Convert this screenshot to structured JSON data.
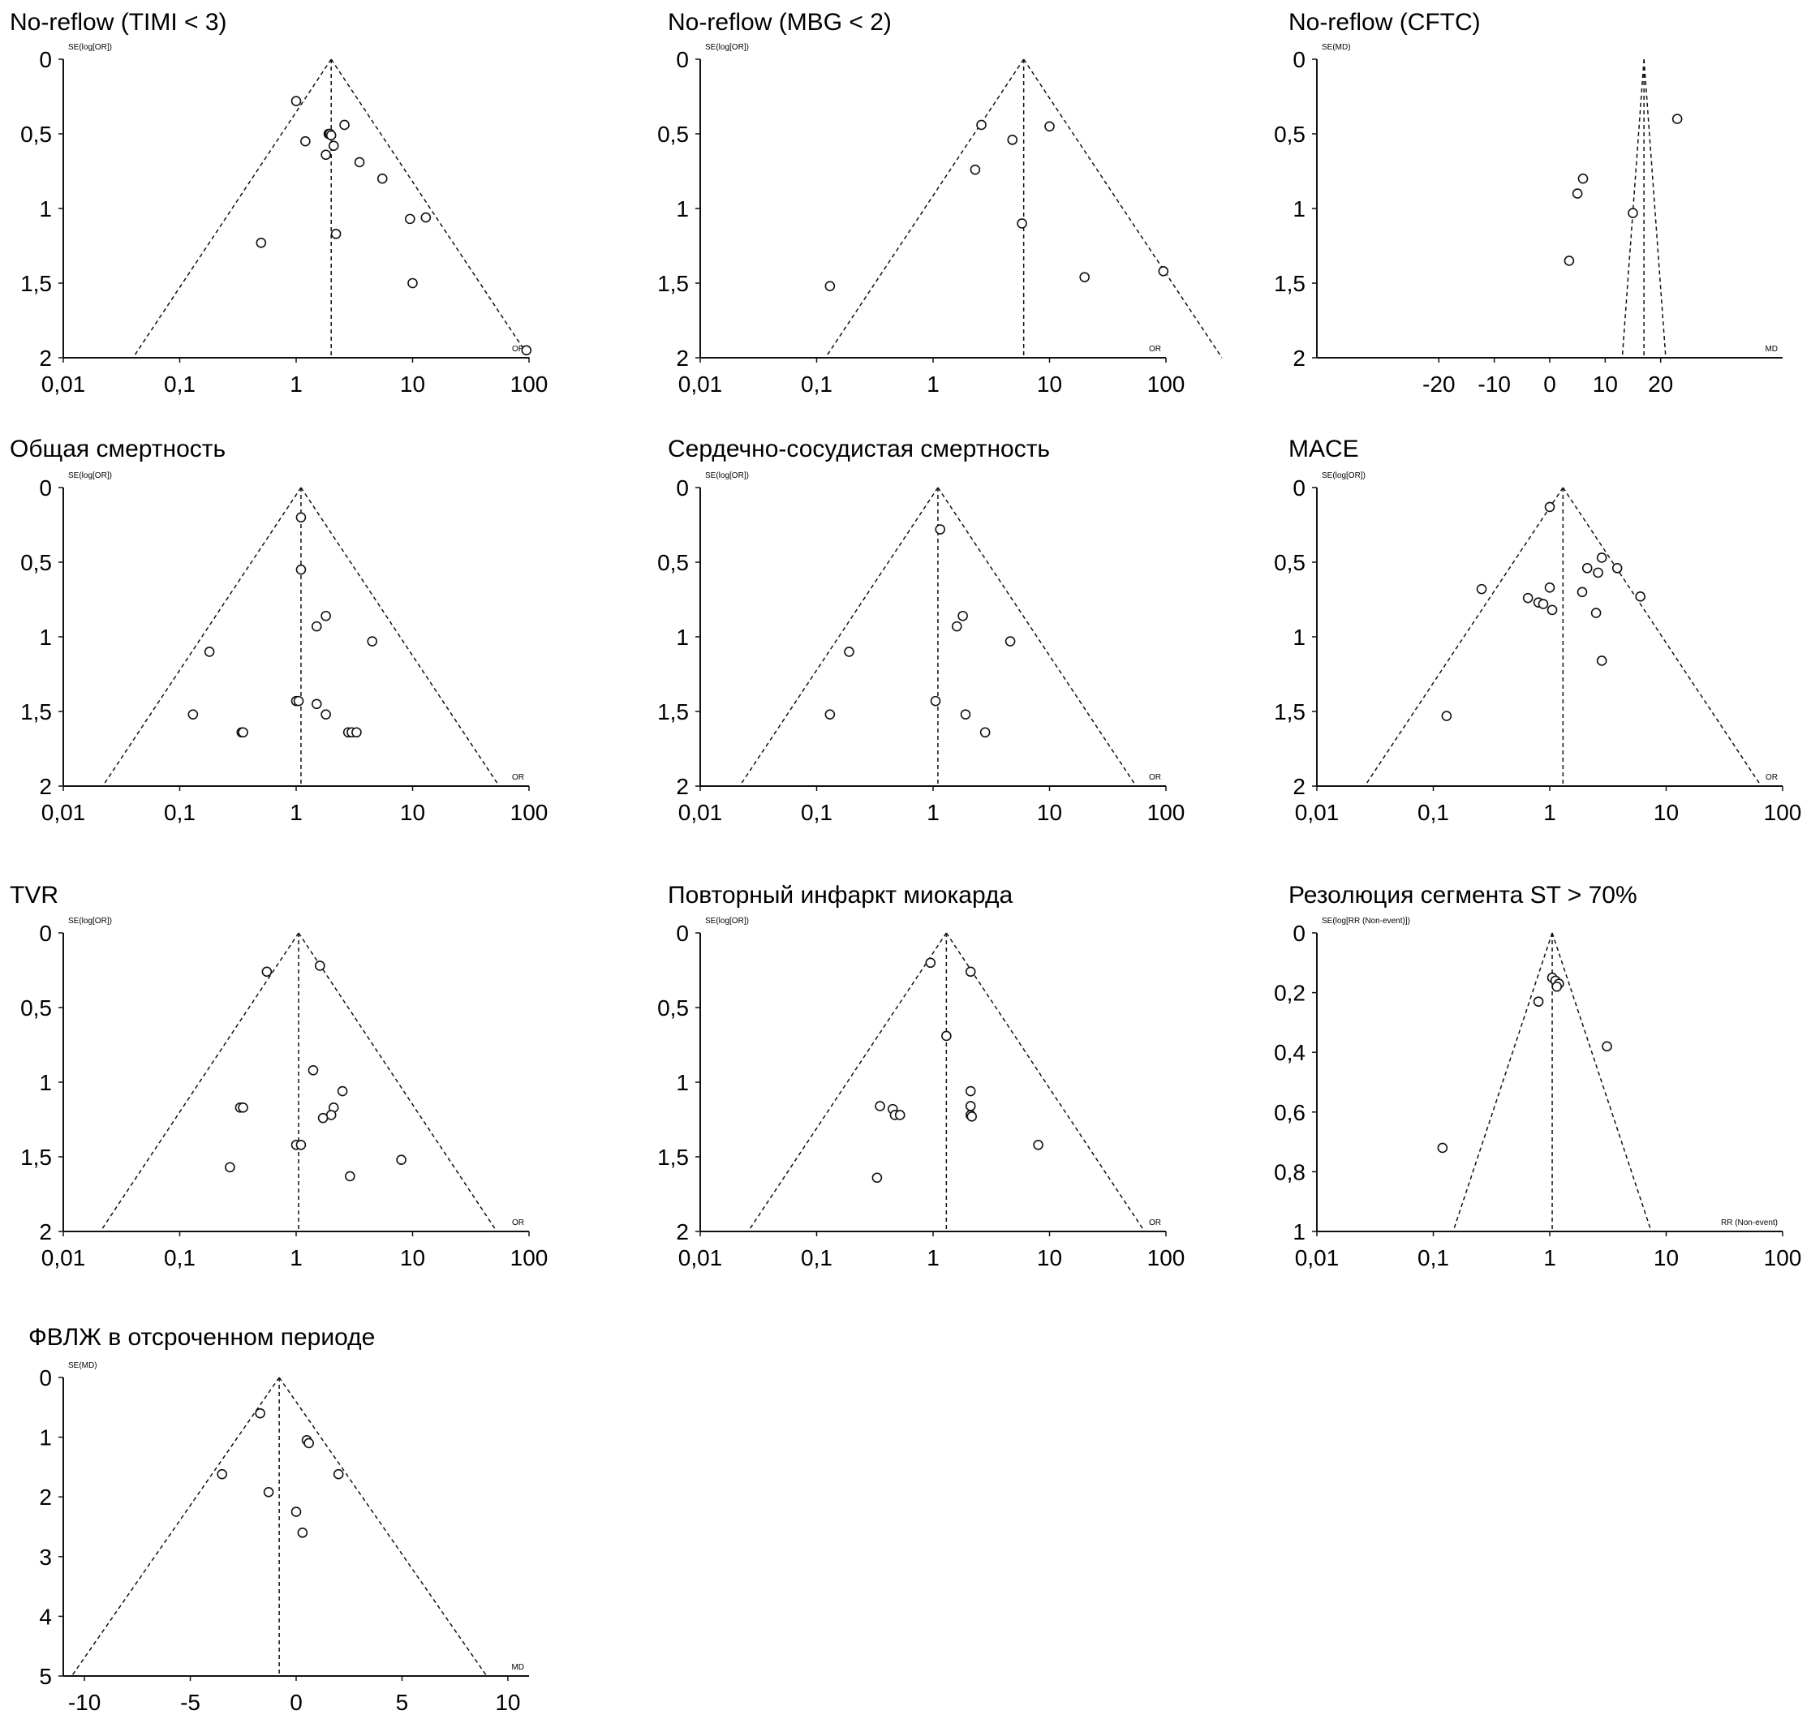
{
  "chart_data": [
    {
      "type": "scatter",
      "subtype": "funnel",
      "title": "No-reflow (TIMI < 3)",
      "xscale": "log",
      "xlabel": "OR",
      "ylabel": "SE(log[OR])",
      "xlim": [
        0.01,
        100
      ],
      "ylim": [
        0,
        2
      ],
      "center": 2,
      "xticks": [
        0.01,
        0.1,
        1,
        10,
        100
      ],
      "xtick_labels": [
        "0,01",
        "0,1",
        "1",
        "10",
        "100"
      ],
      "yticks": [
        0,
        0.5,
        1,
        1.5,
        2
      ],
      "ytick_labels": [
        "0",
        "0,5",
        "1",
        "1,5",
        "2"
      ],
      "points": [
        [
          1.0,
          0.28
        ],
        [
          2.6,
          0.44
        ],
        [
          1.2,
          0.55
        ],
        [
          1.9,
          0.5
        ],
        [
          1.95,
          0.5
        ],
        [
          2.0,
          0.51
        ],
        [
          2.1,
          0.58
        ],
        [
          1.8,
          0.64
        ],
        [
          3.5,
          0.69
        ],
        [
          5.5,
          0.8
        ],
        [
          9.5,
          1.07
        ],
        [
          13,
          1.06
        ],
        [
          0.5,
          1.23
        ],
        [
          2.2,
          1.17
        ],
        [
          10,
          1.5
        ],
        [
          95,
          1.95
        ]
      ]
    },
    {
      "type": "scatter",
      "subtype": "funnel",
      "title": "No-reflow (MBG < 2)",
      "xscale": "log",
      "xlabel": "OR",
      "ylabel": "SE(log[OR])",
      "xlim": [
        0.01,
        100
      ],
      "ylim": [
        0,
        2
      ],
      "center": 6,
      "xticks": [
        0.01,
        0.1,
        1,
        10,
        100
      ],
      "xtick_labels": [
        "0,01",
        "0,1",
        "1",
        "10",
        "100"
      ],
      "yticks": [
        0,
        0.5,
        1,
        1.5,
        2
      ],
      "ytick_labels": [
        "0",
        "0,5",
        "1",
        "1,5",
        "2"
      ],
      "points": [
        [
          2.6,
          0.44
        ],
        [
          4.8,
          0.54
        ],
        [
          10,
          0.45
        ],
        [
          2.3,
          0.74
        ],
        [
          5.8,
          1.1
        ],
        [
          0.13,
          1.52
        ],
        [
          20,
          1.46
        ],
        [
          95,
          1.42
        ]
      ]
    },
    {
      "type": "scatter",
      "subtype": "funnel",
      "title": "No-reflow (CFTC)",
      "xscale": "linear",
      "xlabel": "MD",
      "ylabel": "SE(MD)",
      "xlim": [
        -42,
        42
      ],
      "ylim": [
        0,
        2
      ],
      "center": 17,
      "xticks": [
        -20,
        -10,
        0,
        10,
        20
      ],
      "xtick_labels": [
        "-20",
        "-10",
        "0",
        "10",
        "20"
      ],
      "yticks": [
        0,
        0.5,
        1,
        1.5,
        2
      ],
      "ytick_labels": [
        "0",
        "0,5",
        "1",
        "1,5",
        "2"
      ],
      "points": [
        [
          23,
          0.4
        ],
        [
          6,
          0.8
        ],
        [
          5,
          0.9
        ],
        [
          15,
          1.03
        ],
        [
          3.5,
          1.35
        ]
      ]
    },
    {
      "type": "scatter",
      "subtype": "funnel",
      "title": "Общая смертность",
      "xscale": "log",
      "xlabel": "OR",
      "ylabel": "SE(log[OR])",
      "xlim": [
        0.01,
        100
      ],
      "ylim": [
        0,
        2
      ],
      "center": 1.1,
      "xticks": [
        0.01,
        0.1,
        1,
        10,
        100
      ],
      "xtick_labels": [
        "0,01",
        "0,1",
        "1",
        "10",
        "100"
      ],
      "yticks": [
        0,
        0.5,
        1,
        1.5,
        2
      ],
      "ytick_labels": [
        "0",
        "0,5",
        "1",
        "1,5",
        "2"
      ],
      "points": [
        [
          1.1,
          0.2
        ],
        [
          1.1,
          0.55
        ],
        [
          1.8,
          0.86
        ],
        [
          1.5,
          0.93
        ],
        [
          4.5,
          1.03
        ],
        [
          0.18,
          1.1
        ],
        [
          1.0,
          1.43
        ],
        [
          1.05,
          1.43
        ],
        [
          1.5,
          1.45
        ],
        [
          1.8,
          1.52
        ],
        [
          0.13,
          1.52
        ],
        [
          0.34,
          1.64
        ],
        [
          0.35,
          1.64
        ],
        [
          2.8,
          1.64
        ],
        [
          3.0,
          1.64
        ],
        [
          3.3,
          1.64
        ]
      ]
    },
    {
      "type": "scatter",
      "subtype": "funnel",
      "title": "Сердечно-сосудистая смертность",
      "xscale": "log",
      "xlabel": "OR",
      "ylabel": "SE(log[OR])",
      "xlim": [
        0.01,
        100
      ],
      "ylim": [
        0,
        2
      ],
      "center": 1.1,
      "xticks": [
        0.01,
        0.1,
        1,
        10,
        100
      ],
      "xtick_labels": [
        "0,01",
        "0,1",
        "1",
        "10",
        "100"
      ],
      "yticks": [
        0,
        0.5,
        1,
        1.5,
        2
      ],
      "ytick_labels": [
        "0",
        "0,5",
        "1",
        "1,5",
        "2"
      ],
      "points": [
        [
          1.15,
          0.28
        ],
        [
          1.8,
          0.86
        ],
        [
          1.6,
          0.93
        ],
        [
          4.6,
          1.03
        ],
        [
          0.19,
          1.1
        ],
        [
          1.05,
          1.43
        ],
        [
          1.9,
          1.52
        ],
        [
          0.13,
          1.52
        ],
        [
          2.8,
          1.64
        ]
      ]
    },
    {
      "type": "scatter",
      "subtype": "funnel",
      "title": "MACE",
      "xscale": "log",
      "xlabel": "OR",
      "ylabel": "SE(log[OR])",
      "xlim": [
        0.01,
        100
      ],
      "ylim": [
        0,
        2
      ],
      "center": 1.3,
      "xticks": [
        0.01,
        0.1,
        1,
        10,
        100
      ],
      "xtick_labels": [
        "0,01",
        "0,1",
        "1",
        "10",
        "100"
      ],
      "yticks": [
        0,
        0.5,
        1,
        1.5,
        2
      ],
      "ytick_labels": [
        "0",
        "0,5",
        "1",
        "1,5",
        "2"
      ],
      "points": [
        [
          1.0,
          0.13
        ],
        [
          2.8,
          0.47
        ],
        [
          2.1,
          0.54
        ],
        [
          3.8,
          0.54
        ],
        [
          2.6,
          0.57
        ],
        [
          1.0,
          0.67
        ],
        [
          0.26,
          0.68
        ],
        [
          1.9,
          0.7
        ],
        [
          6.0,
          0.73
        ],
        [
          0.65,
          0.74
        ],
        [
          0.8,
          0.77
        ],
        [
          0.88,
          0.78
        ],
        [
          1.05,
          0.82
        ],
        [
          2.5,
          0.84
        ],
        [
          2.8,
          1.16
        ],
        [
          0.13,
          1.53
        ]
      ]
    },
    {
      "type": "scatter",
      "subtype": "funnel",
      "title": "TVR",
      "xscale": "log",
      "xlabel": "OR",
      "ylabel": "SE(log[OR])",
      "xlim": [
        0.01,
        100
      ],
      "ylim": [
        0,
        2
      ],
      "center": 1.05,
      "xticks": [
        0.01,
        0.1,
        1,
        10,
        100
      ],
      "xtick_labels": [
        "0,01",
        "0,1",
        "1",
        "10",
        "100"
      ],
      "yticks": [
        0,
        0.5,
        1,
        1.5,
        2
      ],
      "ytick_labels": [
        "0",
        "0,5",
        "1",
        "1,5",
        "2"
      ],
      "points": [
        [
          1.6,
          0.22
        ],
        [
          0.56,
          0.26
        ],
        [
          1.4,
          0.92
        ],
        [
          2.5,
          1.06
        ],
        [
          0.33,
          1.17
        ],
        [
          0.35,
          1.17
        ],
        [
          2.1,
          1.17
        ],
        [
          2.0,
          1.22
        ],
        [
          1.7,
          1.24
        ],
        [
          1.0,
          1.42
        ],
        [
          1.1,
          1.42
        ],
        [
          0.27,
          1.57
        ],
        [
          8.0,
          1.52
        ],
        [
          2.9,
          1.63
        ]
      ]
    },
    {
      "type": "scatter",
      "subtype": "funnel",
      "title": "Повторный инфаркт миокарда",
      "xscale": "log",
      "xlabel": "OR",
      "ylabel": "SE(log[OR])",
      "xlim": [
        0.01,
        100
      ],
      "ylim": [
        0,
        2
      ],
      "center": 1.3,
      "xticks": [
        0.01,
        0.1,
        1,
        10,
        100
      ],
      "xtick_labels": [
        "0,01",
        "0,1",
        "1",
        "10",
        "100"
      ],
      "yticks": [
        0,
        0.5,
        1,
        1.5,
        2
      ],
      "ytick_labels": [
        "0",
        "0,5",
        "1",
        "1,5",
        "2"
      ],
      "points": [
        [
          0.95,
          0.2
        ],
        [
          2.1,
          0.26
        ],
        [
          1.3,
          0.69
        ],
        [
          2.1,
          1.06
        ],
        [
          0.35,
          1.16
        ],
        [
          2.1,
          1.16
        ],
        [
          0.45,
          1.18
        ],
        [
          0.47,
          1.22
        ],
        [
          0.52,
          1.22
        ],
        [
          2.1,
          1.22
        ],
        [
          2.15,
          1.23
        ],
        [
          8.0,
          1.42
        ],
        [
          0.33,
          1.64
        ]
      ]
    },
    {
      "type": "scatter",
      "subtype": "funnel",
      "title": "Резолюция сегмента ST > 70%",
      "xscale": "log",
      "xlabel": "RR (Non-event)",
      "ylabel": "SE(log[RR (Non-event)])",
      "xlim": [
        0.01,
        100
      ],
      "ylim": [
        0,
        1
      ],
      "center": 1.05,
      "xticks": [
        0.01,
        0.1,
        1,
        10,
        100
      ],
      "xtick_labels": [
        "0,01",
        "0,1",
        "1",
        "10",
        "100"
      ],
      "yticks": [
        0,
        0.2,
        0.4,
        0.6,
        0.8,
        1
      ],
      "ytick_labels": [
        "0",
        "0,2",
        "0,4",
        "0,6",
        "0,8",
        "1"
      ],
      "points": [
        [
          1.05,
          0.15
        ],
        [
          1.12,
          0.16
        ],
        [
          1.2,
          0.17
        ],
        [
          1.15,
          0.18
        ],
        [
          0.8,
          0.23
        ],
        [
          3.1,
          0.38
        ],
        [
          0.12,
          0.72
        ]
      ]
    },
    {
      "type": "scatter",
      "subtype": "funnel",
      "title": "ФВЛЖ в отсроченном периоде",
      "xscale": "linear",
      "xlabel": "MD",
      "ylabel": "SE(MD)",
      "xlim": [
        -11,
        11
      ],
      "ylim": [
        0,
        5
      ],
      "center": -0.8,
      "xticks": [
        -10,
        -5,
        0,
        5,
        10
      ],
      "xtick_labels": [
        "-10",
        "-5",
        "0",
        "5",
        "10"
      ],
      "yticks": [
        0,
        1,
        2,
        3,
        4,
        5
      ],
      "ytick_labels": [
        "0",
        "1",
        "2",
        "3",
        "4",
        "5"
      ],
      "points": [
        [
          -1.7,
          0.6
        ],
        [
          0.5,
          1.05
        ],
        [
          0.6,
          1.1
        ],
        [
          -3.5,
          1.62
        ],
        [
          2.0,
          1.62
        ],
        [
          -1.3,
          1.92
        ],
        [
          0.0,
          2.25
        ],
        [
          0.3,
          2.6
        ]
      ]
    }
  ]
}
